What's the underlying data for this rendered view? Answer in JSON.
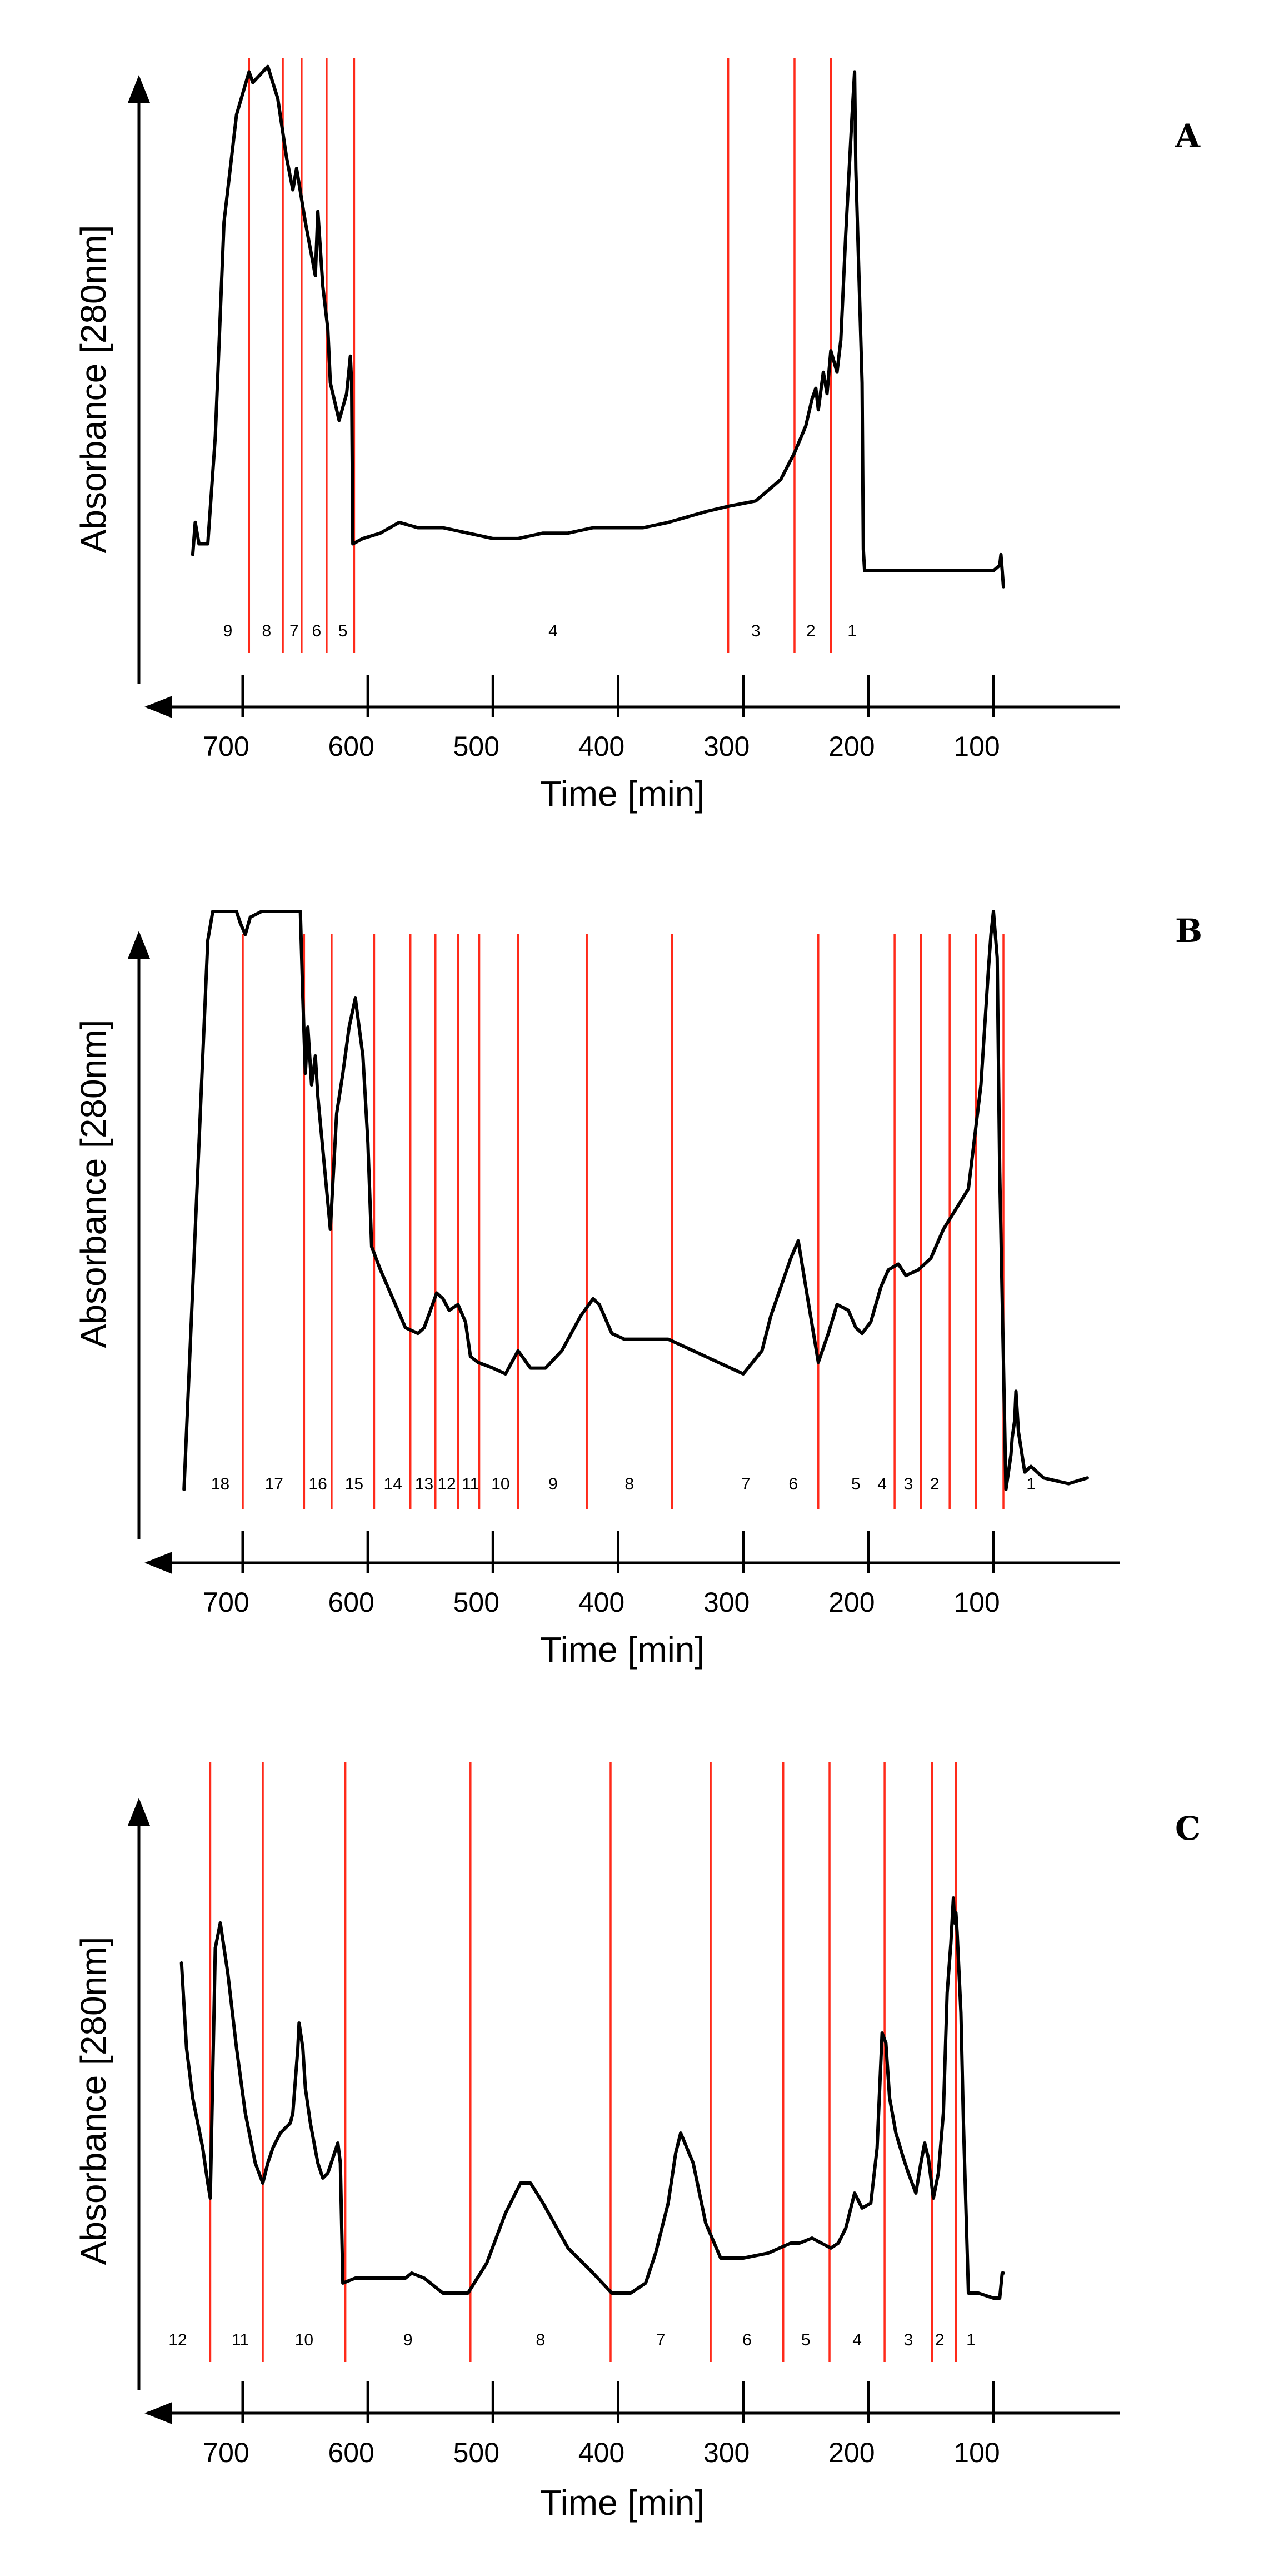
{
  "chart_data": [
    {
      "type": "line",
      "panel": "A",
      "ylabel": "Absorbance [280nm]",
      "xlabel": "Time [min]",
      "x_direction": "reversed",
      "xlim": [
        760,
        20
      ],
      "ticks": [
        700,
        600,
        500,
        400,
        300,
        200,
        100
      ],
      "fraction_boundaries": [
        695,
        668,
        653,
        633,
        611,
        312,
        259,
        230
      ],
      "fractions": [
        {
          "label": "1",
          "x": 213
        },
        {
          "label": "2",
          "x": 246
        },
        {
          "label": "3",
          "x": 290
        },
        {
          "label": "4",
          "x": 452
        },
        {
          "label": "5",
          "x": 620
        },
        {
          "label": "6",
          "x": 641
        },
        {
          "label": "7",
          "x": 659
        },
        {
          "label": "8",
          "x": 681
        },
        {
          "label": "9",
          "x": 712
        }
      ],
      "series": [
        {
          "name": "Absorbance 280nm",
          "x": [
            740,
            738,
            735,
            728,
            722,
            715,
            705,
            695,
            692,
            688,
            680,
            672,
            665,
            660,
            657,
            650,
            646,
            642,
            640,
            636,
            632,
            630,
            623,
            617,
            614,
            613,
            612,
            604,
            590,
            575,
            560,
            540,
            520,
            500,
            480,
            460,
            440,
            420,
            400,
            380,
            360,
            345,
            330,
            312,
            290,
            270,
            259,
            250,
            245,
            242,
            240,
            236,
            233,
            230,
            225,
            222,
            218,
            213,
            211,
            210,
            205,
            204,
            203,
            200,
            190,
            170,
            150,
            130,
            112,
            100,
            95,
            94,
            93,
            92
          ],
          "y": [
            0.08,
            0.14,
            0.1,
            0.1,
            0.3,
            0.7,
            0.9,
            0.98,
            0.96,
            0.97,
            0.99,
            0.93,
            0.82,
            0.76,
            0.8,
            0.7,
            0.65,
            0.6,
            0.72,
            0.58,
            0.5,
            0.4,
            0.33,
            0.38,
            0.45,
            0.4,
            0.1,
            0.11,
            0.12,
            0.14,
            0.13,
            0.13,
            0.12,
            0.11,
            0.11,
            0.12,
            0.12,
            0.13,
            0.13,
            0.13,
            0.14,
            0.15,
            0.16,
            0.17,
            0.18,
            0.22,
            0.27,
            0.32,
            0.37,
            0.39,
            0.35,
            0.42,
            0.38,
            0.46,
            0.42,
            0.48,
            0.68,
            0.9,
            0.98,
            0.8,
            0.4,
            0.09,
            0.05,
            0.05,
            0.05,
            0.05,
            0.05,
            0.05,
            0.05,
            0.05,
            0.06,
            0.08,
            0.05,
            0.02
          ]
        }
      ]
    },
    {
      "type": "line",
      "panel": "B",
      "ylabel": "Absorbance [280nm]",
      "xlabel": "Time [min]",
      "x_direction": "reversed",
      "xlim": [
        760,
        20
      ],
      "ticks": [
        700,
        600,
        500,
        400,
        300,
        200,
        100
      ],
      "fraction_boundaries": [
        700,
        651,
        629,
        595,
        566,
        546,
        528,
        511,
        480,
        425,
        357,
        240,
        179,
        158,
        135,
        114,
        92
      ],
      "fractions": [
        {
          "label": "1",
          "x": 70
        },
        {
          "label": "2",
          "x": 147
        },
        {
          "label": "3",
          "x": 168
        },
        {
          "label": "4",
          "x": 189
        },
        {
          "label": "5",
          "x": 210
        },
        {
          "label": "6",
          "x": 260
        },
        {
          "label": "7",
          "x": 298
        },
        {
          "label": "8",
          "x": 391
        },
        {
          "label": "9",
          "x": 452
        },
        {
          "label": "10",
          "x": 494
        },
        {
          "label": "11",
          "x": 518
        },
        {
          "label": "12",
          "x": 537
        },
        {
          "label": "13",
          "x": 555
        },
        {
          "label": "14",
          "x": 580
        },
        {
          "label": "15",
          "x": 611
        },
        {
          "label": "16",
          "x": 640
        },
        {
          "label": "17",
          "x": 675
        },
        {
          "label": "18",
          "x": 718
        }
      ],
      "series": [
        {
          "name": "Absorbance 280nm",
          "x": [
            747,
            735,
            728,
            724,
            722,
            710,
            705,
            702,
            698,
            694,
            685,
            670,
            654,
            652,
            650,
            648,
            645,
            642,
            640,
            630,
            625,
            620,
            615,
            610,
            604,
            600,
            597,
            590,
            580,
            570,
            560,
            555,
            550,
            545,
            540,
            535,
            528,
            522,
            518,
            512,
            500,
            490,
            480,
            470,
            458,
            445,
            430,
            420,
            415,
            405,
            395,
            380,
            360,
            340,
            320,
            300,
            285,
            278,
            262,
            256,
            250,
            240,
            232,
            225,
            216,
            210,
            205,
            198,
            190,
            184,
            176,
            170,
            160,
            150,
            140,
            120,
            110,
            104,
            102,
            100,
            97,
            95,
            90,
            86,
            85,
            83,
            82,
            80,
            75,
            70,
            60,
            40,
            25
          ],
          "y": [
            0.0,
            0.6,
            0.95,
            1.0,
            1.0,
            1.0,
            1.0,
            0.98,
            0.96,
            0.99,
            1.0,
            1.0,
            1.0,
            0.85,
            0.72,
            0.8,
            0.7,
            0.75,
            0.68,
            0.45,
            0.65,
            0.72,
            0.8,
            0.85,
            0.75,
            0.6,
            0.42,
            0.38,
            0.33,
            0.28,
            0.27,
            0.28,
            0.31,
            0.34,
            0.33,
            0.31,
            0.32,
            0.29,
            0.23,
            0.22,
            0.21,
            0.2,
            0.24,
            0.21,
            0.21,
            0.24,
            0.3,
            0.33,
            0.32,
            0.27,
            0.26,
            0.26,
            0.26,
            0.24,
            0.22,
            0.2,
            0.24,
            0.3,
            0.4,
            0.43,
            0.35,
            0.22,
            0.27,
            0.32,
            0.31,
            0.28,
            0.27,
            0.29,
            0.35,
            0.38,
            0.39,
            0.37,
            0.38,
            0.4,
            0.45,
            0.52,
            0.7,
            0.9,
            0.96,
            1.0,
            0.92,
            0.55,
            0.0,
            0.06,
            0.09,
            0.12,
            0.17,
            0.1,
            0.03,
            0.04,
            0.02,
            0.01,
            0.02
          ]
        }
      ]
    },
    {
      "type": "line",
      "panel": "C",
      "ylabel": "Absorbance [280nm]",
      "xlabel": "Time [min]",
      "x_direction": "reversed",
      "xlim": [
        760,
        20
      ],
      "ticks": [
        700,
        600,
        500,
        400,
        300,
        200,
        100
      ],
      "fraction_boundaries": [
        726,
        684,
        618,
        518,
        406,
        326,
        268,
        231,
        187,
        149,
        130
      ],
      "fractions": [
        {
          "label": "1",
          "x": 118
        },
        {
          "label": "2",
          "x": 143
        },
        {
          "label": "3",
          "x": 168
        },
        {
          "label": "4",
          "x": 209
        },
        {
          "label": "5",
          "x": 250
        },
        {
          "label": "6",
          "x": 297
        },
        {
          "label": "7",
          "x": 366
        },
        {
          "label": "8",
          "x": 462
        },
        {
          "label": "9",
          "x": 568
        },
        {
          "label": "10",
          "x": 651
        },
        {
          "label": "11",
          "x": 702
        },
        {
          "label": "12",
          "x": 752
        }
      ],
      "series": [
        {
          "name": "Absorbance 280nm",
          "x": [
            749,
            745,
            740,
            732,
            728,
            726,
            724,
            722,
            718,
            712,
            705,
            698,
            690,
            684,
            680,
            676,
            670,
            662,
            660,
            656,
            655,
            652,
            650,
            646,
            640,
            636,
            632,
            628,
            624,
            622,
            620,
            610,
            590,
            570,
            565,
            555,
            540,
            520,
            505,
            490,
            478,
            470,
            460,
            440,
            420,
            405,
            390,
            378,
            370,
            360,
            354,
            350,
            340,
            330,
            318,
            300,
            280,
            262,
            255,
            245,
            230,
            224,
            218,
            211,
            205,
            198,
            193,
            189,
            186,
            183,
            178,
            172,
            168,
            162,
            158,
            155,
            152,
            148,
            144,
            140,
            137,
            134,
            132,
            131,
            130,
            129,
            126,
            124,
            120,
            112,
            100,
            95,
            93,
            92
          ],
          "y": [
            0.72,
            0.55,
            0.45,
            0.35,
            0.28,
            0.25,
            0.5,
            0.75,
            0.8,
            0.7,
            0.55,
            0.42,
            0.32,
            0.28,
            0.32,
            0.35,
            0.38,
            0.4,
            0.42,
            0.55,
            0.6,
            0.55,
            0.47,
            0.4,
            0.32,
            0.29,
            0.3,
            0.33,
            0.36,
            0.32,
            0.08,
            0.09,
            0.09,
            0.09,
            0.1,
            0.09,
            0.06,
            0.06,
            0.12,
            0.22,
            0.28,
            0.28,
            0.24,
            0.15,
            0.1,
            0.06,
            0.06,
            0.08,
            0.14,
            0.24,
            0.34,
            0.38,
            0.32,
            0.2,
            0.13,
            0.13,
            0.14,
            0.16,
            0.16,
            0.17,
            0.15,
            0.16,
            0.19,
            0.26,
            0.23,
            0.24,
            0.35,
            0.58,
            0.56,
            0.45,
            0.38,
            0.33,
            0.3,
            0.26,
            0.32,
            0.36,
            0.33,
            0.25,
            0.3,
            0.42,
            0.66,
            0.76,
            0.85,
            0.8,
            0.82,
            0.78,
            0.62,
            0.4,
            0.06,
            0.06,
            0.05,
            0.05,
            0.1,
            0.1
          ]
        }
      ]
    }
  ]
}
